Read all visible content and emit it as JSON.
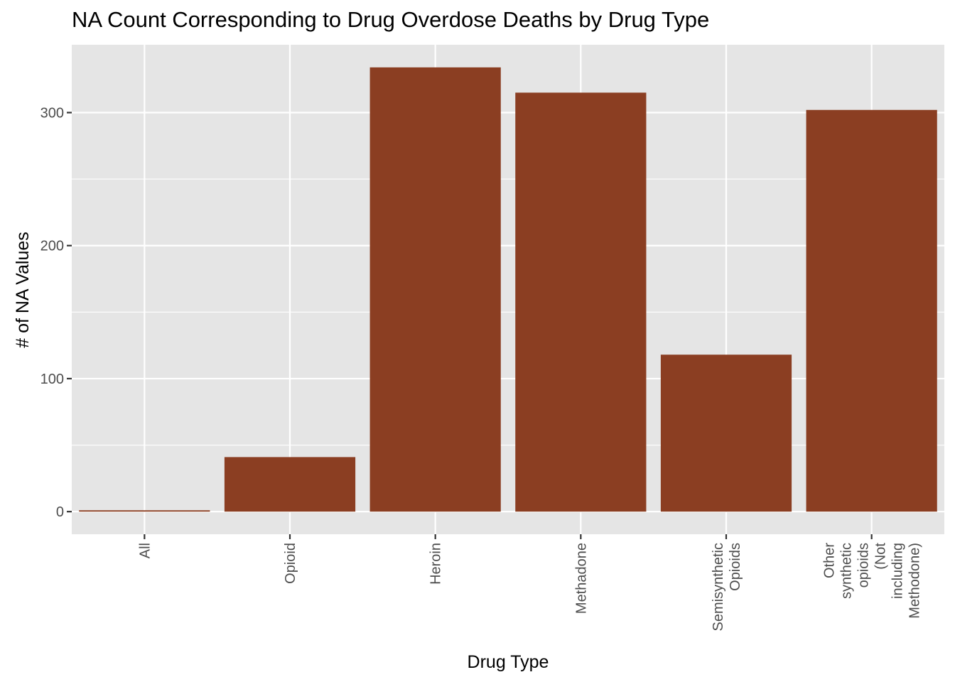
{
  "chart_data": {
    "type": "bar",
    "title": "NA Count Corresponding to Drug Overdose Deaths by Drug Type",
    "xlabel": "Drug Type",
    "ylabel": "# of NA Values",
    "categories": [
      "All",
      "Opioid",
      "Heroin",
      "Methadone",
      "Semisynthetic Opioids",
      "Other synthetic opioids (Not including Methodone)"
    ],
    "category_label_lines": [
      [
        "All"
      ],
      [
        "Opioid"
      ],
      [
        "Heroin"
      ],
      [
        "Methadone"
      ],
      [
        "Semisynthetic",
        "Opioids"
      ],
      [
        "Other",
        "synthetic",
        "opioids",
        "(Not",
        "including",
        "Methodone)"
      ]
    ],
    "values": [
      1,
      41,
      334,
      315,
      118,
      302
    ],
    "ylim": [
      -17,
      351
    ],
    "y_ticks": [
      0,
      100,
      200,
      300
    ],
    "y_tick_labels": [
      "0",
      "100",
      "200",
      "300"
    ],
    "grid": true,
    "colors": {
      "bar": "#8B3E22",
      "panel": "#E5E5E5",
      "grid": "#FFFFFF",
      "axis_text": "#4D4D4D"
    }
  }
}
